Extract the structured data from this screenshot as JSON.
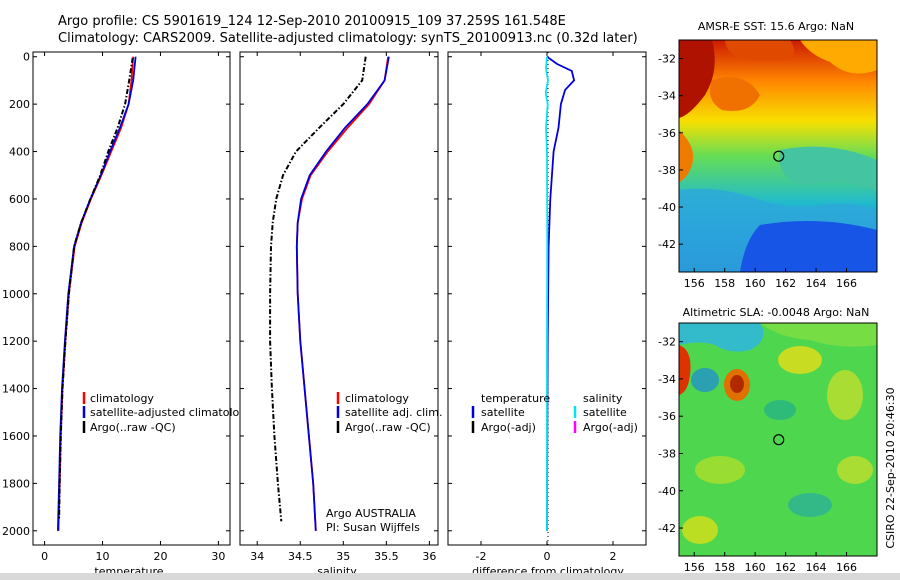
{
  "figure": {
    "title_line1": "Argo profile: CS 5901619_124 12-Sep-2010 20100915_109 37.259S 161.548E",
    "title_line2": "Climatology: CARS2009. Satellite-adjusted climatology: synTS_20100913.nc (0.32d later)",
    "side_credit": "CSIRO 22-Sep-2010 20:46:30"
  },
  "colors": {
    "climatology": "#ff0000",
    "satellite": "#0000dd",
    "argo": "#000000",
    "salinity_satellite": "#00e5ee",
    "salinity_argo": "#ff00ff"
  },
  "chart_data": [
    {
      "type": "line",
      "name": "temperature-profile",
      "xlabel": "temperature",
      "ylabel": "",
      "xlim": [
        -2,
        32
      ],
      "ylim": [
        2060,
        -20
      ],
      "xticks": [
        0,
        10,
        20,
        30
      ],
      "yticks": [
        0,
        200,
        400,
        600,
        800,
        1000,
        1200,
        1400,
        1600,
        1800,
        2000
      ],
      "legend": [
        "climatology",
        "satellite-adjusted climatology",
        "Argo(..raw -QC)"
      ],
      "series": [
        {
          "name": "climatology",
          "color": "#ff0000",
          "x": [
            15.3,
            15.0,
            14.5,
            13.2,
            11.5,
            9.8,
            8.0,
            6.4,
            5.2,
            4.2,
            3.6,
            3.1,
            2.8,
            2.6,
            2.4
          ],
          "y": [
            0,
            100,
            200,
            300,
            400,
            500,
            600,
            700,
            800,
            1000,
            1200,
            1400,
            1600,
            1800,
            2000
          ]
        },
        {
          "name": "satellite-adjusted climatology",
          "color": "#0000dd",
          "x": [
            15.7,
            15.3,
            14.5,
            13.0,
            11.3,
            9.7,
            7.9,
            6.3,
            5.1,
            4.1,
            3.5,
            3.0,
            2.7,
            2.5,
            2.3
          ],
          "y": [
            0,
            100,
            200,
            300,
            400,
            500,
            600,
            700,
            800,
            1000,
            1200,
            1400,
            1600,
            1800,
            2000
          ]
        },
        {
          "name": "Argo(..raw -QC)",
          "color": "#000000",
          "x": [
            15.2,
            14.6,
            13.9,
            12.6,
            11.0,
            9.6,
            7.9,
            6.3,
            5.1,
            4.2,
            3.6,
            3.1,
            2.8,
            2.6,
            2.5
          ],
          "y": [
            5,
            100,
            200,
            300,
            400,
            500,
            600,
            700,
            800,
            1000,
            1200,
            1400,
            1600,
            1800,
            1950
          ]
        }
      ]
    },
    {
      "type": "line",
      "name": "salinity-profile",
      "xlabel": "salinity",
      "ylabel": "",
      "xlim": [
        33.8,
        36.1
      ],
      "ylim": [
        2060,
        -20
      ],
      "xticks": [
        34,
        34.5,
        35,
        35.5,
        36
      ],
      "yticks": [
        0,
        200,
        400,
        600,
        800,
        1000,
        1200,
        1400,
        1600,
        1800,
        2000
      ],
      "legend": [
        "climatology",
        "satellite adj. clim.",
        "Argo(..raw -QC)"
      ],
      "annotation_line1": "Argo AUSTRALIA",
      "annotation_line2": "PI: Susan Wijffels",
      "series": [
        {
          "name": "climatology",
          "color": "#ff0000",
          "x": [
            35.52,
            35.48,
            35.3,
            35.05,
            34.82,
            34.62,
            34.52,
            34.47,
            34.46,
            34.47,
            34.5,
            34.55,
            34.6,
            34.65,
            34.68
          ],
          "y": [
            0,
            100,
            200,
            300,
            400,
            500,
            600,
            700,
            800,
            1000,
            1200,
            1400,
            1600,
            1800,
            2000
          ]
        },
        {
          "name": "satellite adj. clim.",
          "color": "#0000dd",
          "x": [
            35.53,
            35.48,
            35.28,
            35.02,
            34.8,
            34.61,
            34.51,
            34.47,
            34.46,
            34.47,
            34.5,
            34.55,
            34.6,
            34.65,
            34.68
          ],
          "y": [
            0,
            100,
            200,
            300,
            400,
            500,
            600,
            700,
            800,
            1000,
            1200,
            1400,
            1600,
            1800,
            2000
          ]
        },
        {
          "name": "Argo(..raw -QC)",
          "color": "#000000",
          "x": [
            35.26,
            35.22,
            35.0,
            34.72,
            34.45,
            34.3,
            34.22,
            34.18,
            34.16,
            34.15,
            34.15,
            34.17,
            34.2,
            34.24,
            34.28
          ],
          "y": [
            0,
            100,
            200,
            300,
            400,
            500,
            600,
            700,
            800,
            1000,
            1200,
            1400,
            1600,
            1800,
            1960
          ]
        }
      ]
    },
    {
      "type": "line",
      "name": "difference-profile",
      "xlabel": "difference from climatology",
      "ylabel": "",
      "xlim": [
        -3,
        3
      ],
      "ylim": [
        2060,
        -20
      ],
      "xticks": [
        -2,
        0,
        2
      ],
      "yticks": [
        0,
        200,
        400,
        600,
        800,
        1000,
        1200,
        1400,
        1600,
        1800,
        2000
      ],
      "legend_left_title": "temperature",
      "legend_left": [
        "satellite",
        "Argo(-adj)"
      ],
      "legend_right_title": "salinity",
      "legend_right": [
        "satellite",
        "Argo(-adj)"
      ],
      "series": [
        {
          "name": "temperature satellite",
          "color": "#0000dd",
          "x": [
            0.0,
            0.3,
            0.75,
            0.82,
            0.55,
            0.42,
            0.35,
            0.2,
            0.1,
            0.05,
            0.02,
            0.01,
            0.0
          ],
          "y": [
            0,
            30,
            60,
            100,
            140,
            200,
            300,
            400,
            600,
            800,
            1200,
            1600,
            2000
          ]
        },
        {
          "name": "salinity satellite",
          "color": "#00e5ee",
          "x": [
            0.0,
            -0.03,
            0.03,
            -0.04,
            0.02,
            -0.03,
            0.0,
            0.01,
            0.0,
            0.0
          ],
          "y": [
            0,
            50,
            100,
            150,
            200,
            300,
            400,
            800,
            1200,
            2000
          ]
        }
      ]
    },
    {
      "type": "heatmap",
      "name": "sst-map",
      "title": "AMSR-E SST: 15.6 Argo: NaN",
      "xticks": [
        156,
        158,
        160,
        162,
        164,
        166
      ],
      "yticks": [
        -32,
        -34,
        -36,
        -38,
        -40,
        -42
      ],
      "xlim": [
        155,
        168
      ],
      "ylim": [
        -43.5,
        -31
      ],
      "marker": {
        "lon": 161.548,
        "lat": -37.259
      }
    },
    {
      "type": "heatmap",
      "name": "sla-map",
      "title": "Altimetric SLA: -0.0048 Argo: NaN",
      "xticks": [
        156,
        158,
        160,
        162,
        164,
        166
      ],
      "yticks": [
        -32,
        -34,
        -36,
        -38,
        -40,
        -42
      ],
      "xlim": [
        155,
        168
      ],
      "ylim": [
        -43.5,
        -31
      ],
      "marker": {
        "lon": 161.548,
        "lat": -37.259
      }
    }
  ]
}
